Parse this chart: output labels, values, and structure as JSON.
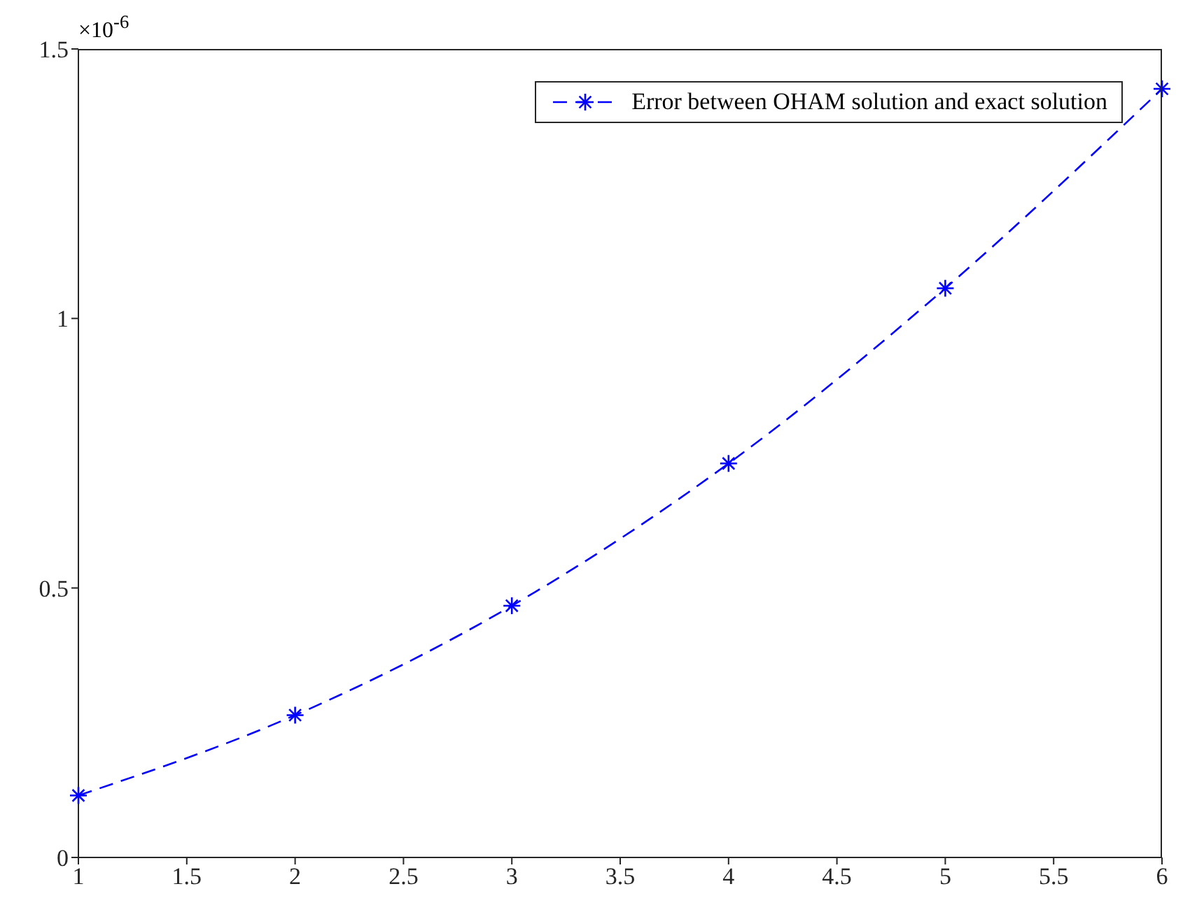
{
  "chart_data": {
    "type": "line",
    "x": [
      1,
      2,
      3,
      4,
      5,
      6
    ],
    "series": [
      {
        "name": "Error between OHAM solution and exact solution",
        "color": "#0000ff",
        "values": [
          0.115,
          0.264,
          0.467,
          0.731,
          1.056,
          1.426
        ]
      }
    ],
    "xlim": [
      1,
      6
    ],
    "xticks": [
      1,
      1.5,
      2,
      2.5,
      3,
      3.5,
      4,
      4.5,
      5,
      5.5,
      6
    ],
    "ylim": [
      0,
      1.5
    ],
    "yticks": [
      0,
      0.5,
      1,
      1.5
    ],
    "annotations": [
      "×10$^{-6}$"
    ],
    "marker": "cross",
    "line_style": "dashed",
    "grid": false,
    "legend": "top right"
  }
}
